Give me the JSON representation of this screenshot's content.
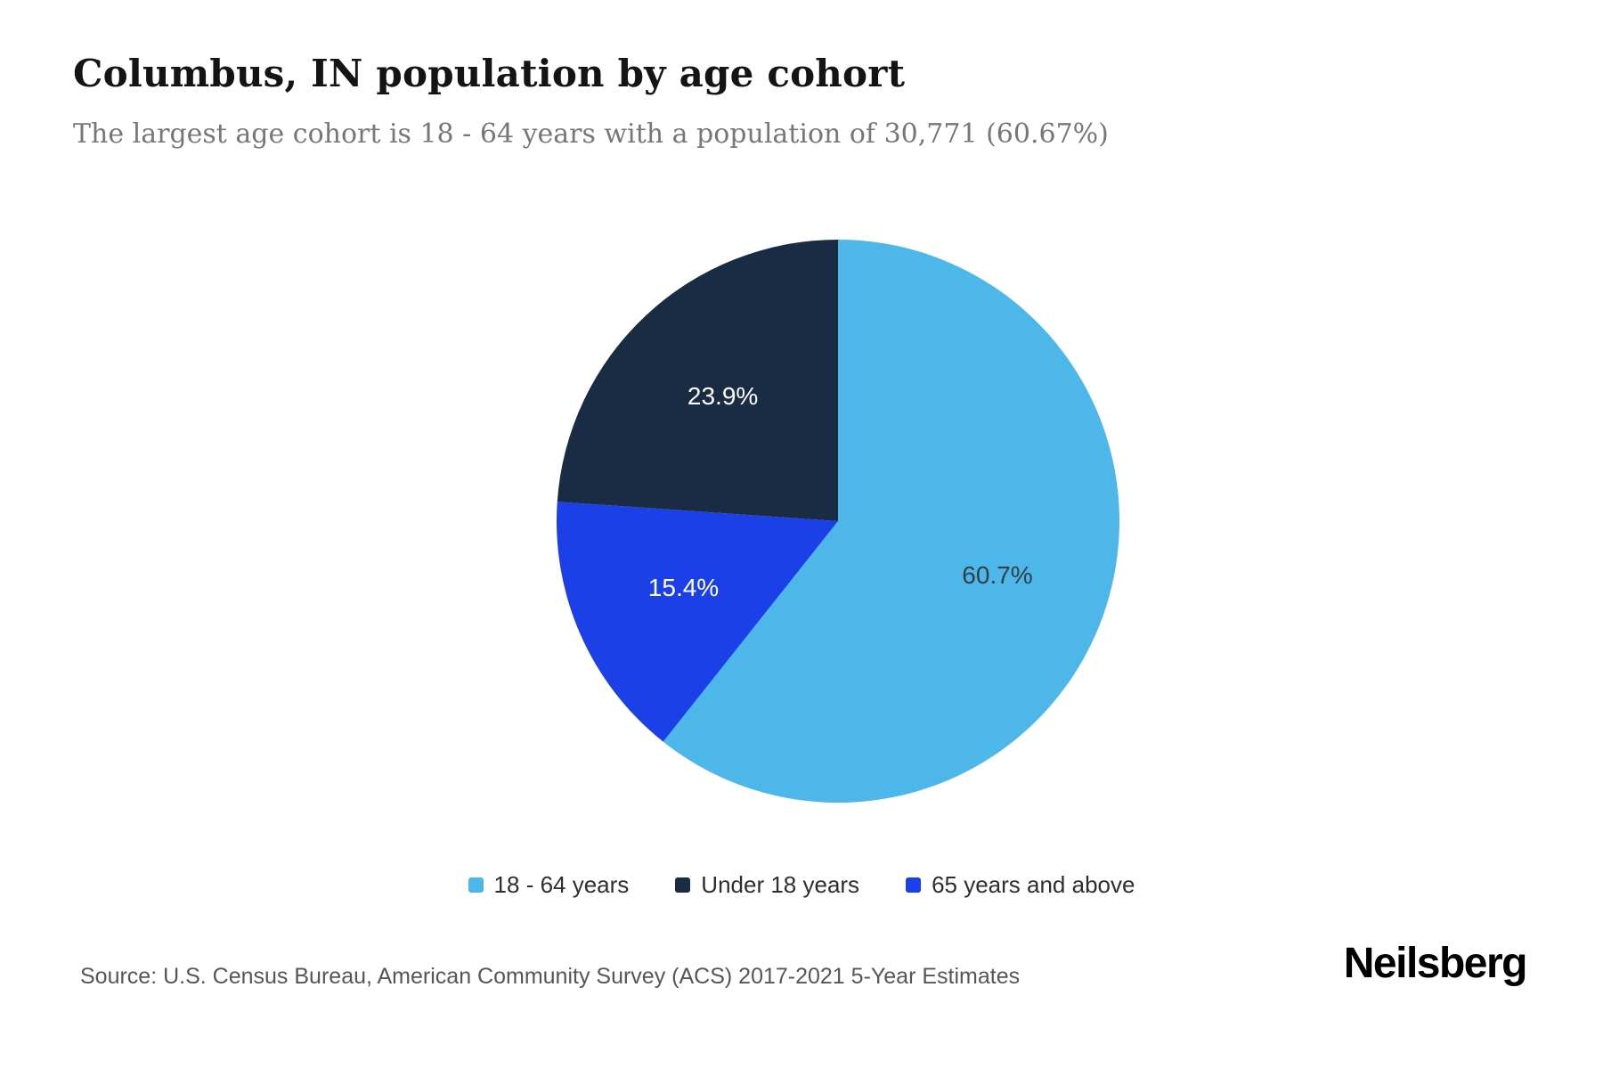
{
  "page": {
    "title": "Columbus, IN population by age cohort",
    "subtitle": "The largest age cohort is 18 - 64 years with a population of 30,771 (60.67%)",
    "source": "Source: U.S. Census Bureau, American Community Survey (ACS) 2017-2021 5-Year Estimates",
    "brand": "Neilsberg"
  },
  "chart_data": {
    "type": "pie",
    "title": "Columbus, IN population by age cohort",
    "subtitle": "The largest age cohort is 18 - 64 years with a population of 30,771 (60.67%)",
    "start_angle_deg": 0,
    "direction": "clockwise",
    "slices": [
      {
        "label": "18 - 64 years",
        "value": 60.67,
        "display": "60.7%",
        "color": "#4CB7E8",
        "label_color": "#333F48"
      },
      {
        "label": "65 years and above",
        "value": 15.43,
        "display": "15.4%",
        "color": "#1C40E8",
        "label_color": "#FFFFFF"
      },
      {
        "label": "Under 18 years",
        "value": 23.9,
        "display": "23.9%",
        "color": "#1A2B44",
        "label_color": "#FFFFFF"
      }
    ],
    "legend": {
      "position": "bottom",
      "items": [
        "18 - 64 years",
        "Under 18 years",
        "65 years and above"
      ]
    },
    "largest_cohort": {
      "label": "18 - 64 years",
      "population": "30,771",
      "percent": "60.67%"
    }
  }
}
